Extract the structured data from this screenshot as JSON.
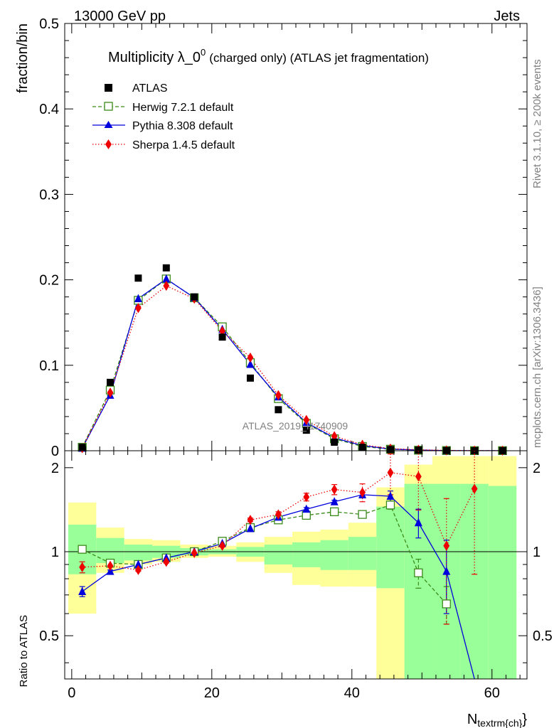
{
  "header": {
    "left": "13000 GeV pp",
    "right": "Jets",
    "title_main": "Multiplicity λ_0",
    "title_sup": "0",
    "title_rest": "(charged only) (ATLAS jet fragmentation)"
  },
  "side": {
    "rivet": "Rivet 3.1.10, ≥ 200k events",
    "mcplots": "mcplots.cern.ch [arXiv:1306.3436]"
  },
  "watermark": "ATLAS_2019_I1740909",
  "colors": {
    "data": "#000000",
    "herwig": "#3a8a1a",
    "pythia": "#0000dd",
    "sherpa": "#ee0000",
    "band_yellow": "#ffff99",
    "band_green": "#99ff99"
  },
  "chart_data": [
    {
      "type": "line",
      "title": "Multiplicity λ_0^0 (charged only) (ATLAS jet fragmentation)",
      "xlabel": "N_textrm{ch}",
      "ylabel": "fraction/bin",
      "xlim": [
        -1,
        65
      ],
      "ylim": [
        0,
        0.5
      ],
      "yticks": [
        "0",
        "0.1",
        "0.2",
        "0.3",
        "0.4",
        "0.5"
      ],
      "x": [
        1.5,
        5.5,
        9.5,
        13.5,
        17.5,
        21.5,
        25.5,
        29.5,
        33.5,
        37.5,
        41.5,
        45.5,
        49.5,
        53.5,
        57.5,
        61.5
      ],
      "series": [
        {
          "name": "ATLAS",
          "values": [
            0.004,
            0.08,
            0.202,
            0.214,
            0.18,
            0.133,
            0.085,
            0.048,
            0.024,
            0.01,
            0.004,
            0.0015,
            0.0007,
            0.0003,
            0.0001,
            0.0001
          ]
        },
        {
          "name": "Herwig 7.2.1 default",
          "values": [
            0.004,
            0.071,
            0.176,
            0.201,
            0.179,
            0.145,
            0.103,
            0.061,
            0.032,
            0.014,
            0.005,
            0.0018,
            0.0006,
            0.0002,
            0.0001,
            0.0001
          ]
        },
        {
          "name": "Pythia 8.308 default",
          "values": [
            0.003,
            0.065,
            0.178,
            0.201,
            0.179,
            0.142,
            0.101,
            0.063,
            0.033,
            0.015,
            0.006,
            0.002,
            0.0008,
            0.0002,
            0.0001,
            0.0001
          ]
        },
        {
          "name": "Sherpa 1.4.5 default",
          "values": [
            0.003,
            0.068,
            0.167,
            0.193,
            0.178,
            0.14,
            0.109,
            0.065,
            0.036,
            0.017,
            0.007,
            0.0025,
            0.0011,
            0.0004,
            0.0002,
            0.0001
          ]
        }
      ]
    },
    {
      "type": "line",
      "ylabel": "Ratio to ATLAS",
      "xlabel": "N_textrm{ch}",
      "xlim": [
        -1,
        65
      ],
      "ylim": [
        0.35,
        2.3
      ],
      "xticks": [
        "0",
        "20",
        "40",
        "60"
      ],
      "yticks": [
        "0.5",
        "1",
        "2"
      ],
      "x": [
        1.5,
        5.5,
        9.5,
        13.5,
        17.5,
        21.5,
        25.5,
        29.5,
        33.5,
        37.5,
        41.5,
        45.5,
        49.5,
        53.5,
        57.5,
        61.5
      ],
      "bins": [
        [
          -0.5,
          3.5
        ],
        [
          3.5,
          7.5
        ],
        [
          7.5,
          11.5
        ],
        [
          11.5,
          15.5
        ],
        [
          15.5,
          19.5
        ],
        [
          19.5,
          23.5
        ],
        [
          23.5,
          27.5
        ],
        [
          27.5,
          31.5
        ],
        [
          31.5,
          35.5
        ],
        [
          35.5,
          39.5
        ],
        [
          39.5,
          43.5
        ],
        [
          43.5,
          47.5
        ],
        [
          47.5,
          51.5
        ],
        [
          51.5,
          55.5
        ],
        [
          55.5,
          59.5
        ],
        [
          59.5,
          63.5
        ]
      ],
      "band_yellow": [
        [
          0.6,
          1.5
        ],
        [
          0.84,
          1.22
        ],
        [
          0.9,
          1.11
        ],
        [
          0.92,
          1.1
        ],
        [
          0.95,
          1.06
        ],
        [
          0.96,
          1.05
        ],
        [
          0.92,
          1.08
        ],
        [
          0.84,
          1.13
        ],
        [
          0.76,
          1.18
        ],
        [
          0.75,
          1.2
        ],
        [
          0.75,
          1.27
        ],
        [
          0.3,
          1.7
        ],
        [
          0.3,
          2.05
        ],
        [
          0.3,
          2.2
        ],
        [
          0.3,
          2.2
        ],
        [
          0.3,
          2.2
        ]
      ],
      "band_green": [
        [
          0.83,
          1.25
        ],
        [
          0.91,
          1.12
        ],
        [
          0.93,
          1.06
        ],
        [
          0.95,
          1.05
        ],
        [
          0.97,
          1.03
        ],
        [
          0.98,
          1.02
        ],
        [
          0.96,
          1.04
        ],
        [
          0.9,
          1.06
        ],
        [
          0.88,
          1.08
        ],
        [
          0.86,
          1.1
        ],
        [
          0.86,
          1.13
        ],
        [
          0.74,
          1.45
        ],
        [
          0.3,
          1.75
        ],
        [
          0.3,
          1.75
        ],
        [
          0.3,
          1.75
        ],
        [
          0.3,
          1.72
        ]
      ],
      "series": [
        {
          "name": "Herwig 7.2.1 default",
          "values": [
            1.02,
            0.91,
            0.9,
            0.95,
            1.0,
            1.09,
            1.22,
            1.3,
            1.35,
            1.39,
            1.36,
            1.47,
            0.84,
            0.65,
            null,
            null
          ],
          "errors": [
            0.03,
            0.01,
            0.01,
            0.01,
            0.01,
            0.01,
            0.01,
            0.02,
            0.02,
            0.02,
            0.03,
            0.05,
            0.1,
            0.1,
            null,
            null
          ]
        },
        {
          "name": "Pythia 8.308 default",
          "values": [
            0.72,
            0.85,
            0.9,
            0.95,
            1.0,
            1.07,
            1.21,
            1.33,
            1.42,
            1.51,
            1.6,
            1.58,
            1.27,
            0.85,
            0.3,
            null
          ],
          "errors": [
            0.03,
            0.01,
            0.01,
            0.01,
            0.01,
            0.01,
            0.01,
            0.02,
            0.02,
            0.02,
            0.04,
            0.07,
            0.15,
            0.25,
            null,
            null
          ]
        },
        {
          "name": "Sherpa 1.4.5 default",
          "values": [
            0.88,
            0.89,
            0.86,
            0.92,
            0.99,
            1.05,
            1.3,
            1.36,
            1.57,
            1.67,
            1.63,
            1.92,
            1.86,
            1.05,
            1.68,
            null
          ],
          "errors": [
            0.04,
            0.01,
            0.01,
            0.01,
            0.01,
            0.01,
            0.02,
            0.03,
            0.05,
            0.07,
            0.12,
            0.32,
            0.45,
            0.5,
            0.85,
            null
          ]
        }
      ]
    }
  ]
}
